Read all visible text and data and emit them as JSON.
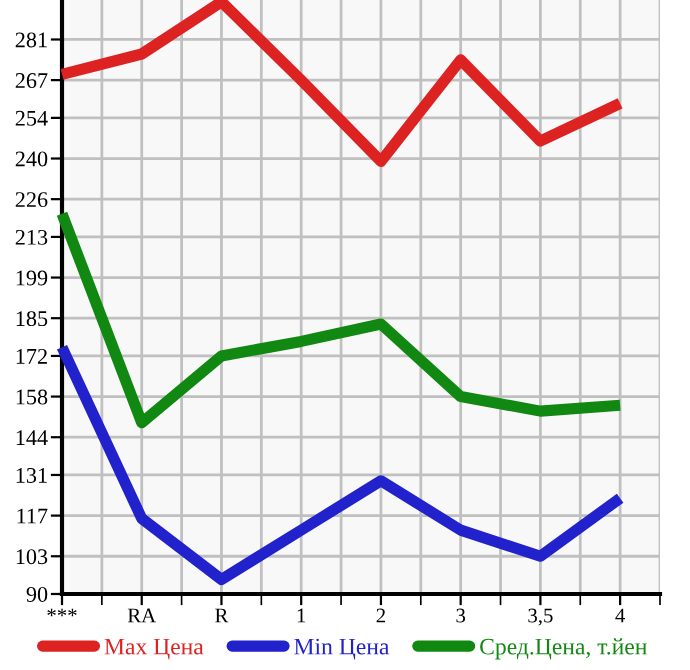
{
  "chart_data": {
    "type": "line",
    "categories": [
      "***",
      "RA",
      "R",
      "1",
      "2",
      "3",
      "3,5",
      "4"
    ],
    "series": [
      {
        "name": "Max Цена",
        "color": "#dd2222",
        "values": [
          269,
          276,
          294,
          267,
          239,
          274,
          246,
          259
        ]
      },
      {
        "name": "Min Цена",
        "color": "#2222cc",
        "values": [
          175,
          116,
          95,
          112,
          129,
          112,
          103,
          123
        ]
      },
      {
        "name": "Сред.Цена, т.йен",
        "color": "#118811",
        "values": [
          221,
          149,
          172,
          177,
          183,
          158,
          153,
          155
        ]
      }
    ],
    "ylim": [
      90,
      294.6
    ],
    "yticks": [
      90,
      103,
      117,
      131,
      144,
      158,
      172,
      185,
      199,
      213,
      226,
      240,
      254,
      267,
      281
    ],
    "grid": true,
    "legend": "bottom",
    "marker": "none",
    "line_style": "solid"
  }
}
